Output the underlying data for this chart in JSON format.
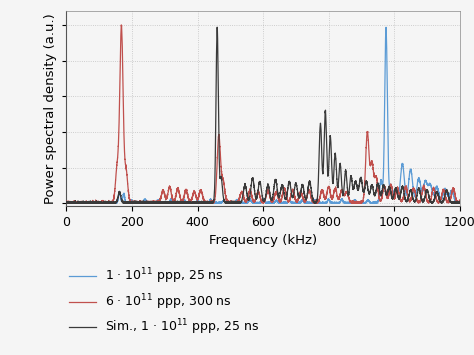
{
  "xlabel": "Frequency (kHz)",
  "ylabel": "Power spectral density (a.u.)",
  "xlim": [
    0,
    1200
  ],
  "xticks": [
    0,
    200,
    400,
    600,
    800,
    1000,
    1200
  ],
  "colors": {
    "blue": "#5b9bd5",
    "red": "#c0504d",
    "gray": "#3a3a3a"
  },
  "legend_labels": [
    "1 · 10$^{11}$ ppp, 25 ns",
    "6 · 10$^{11}$ ppp, 300 ns",
    "Sim., 1 · 10$^{11}$ ppp, 25 ns"
  ],
  "background": "#f5f5f5",
  "grid_color": "#aaaaaa"
}
